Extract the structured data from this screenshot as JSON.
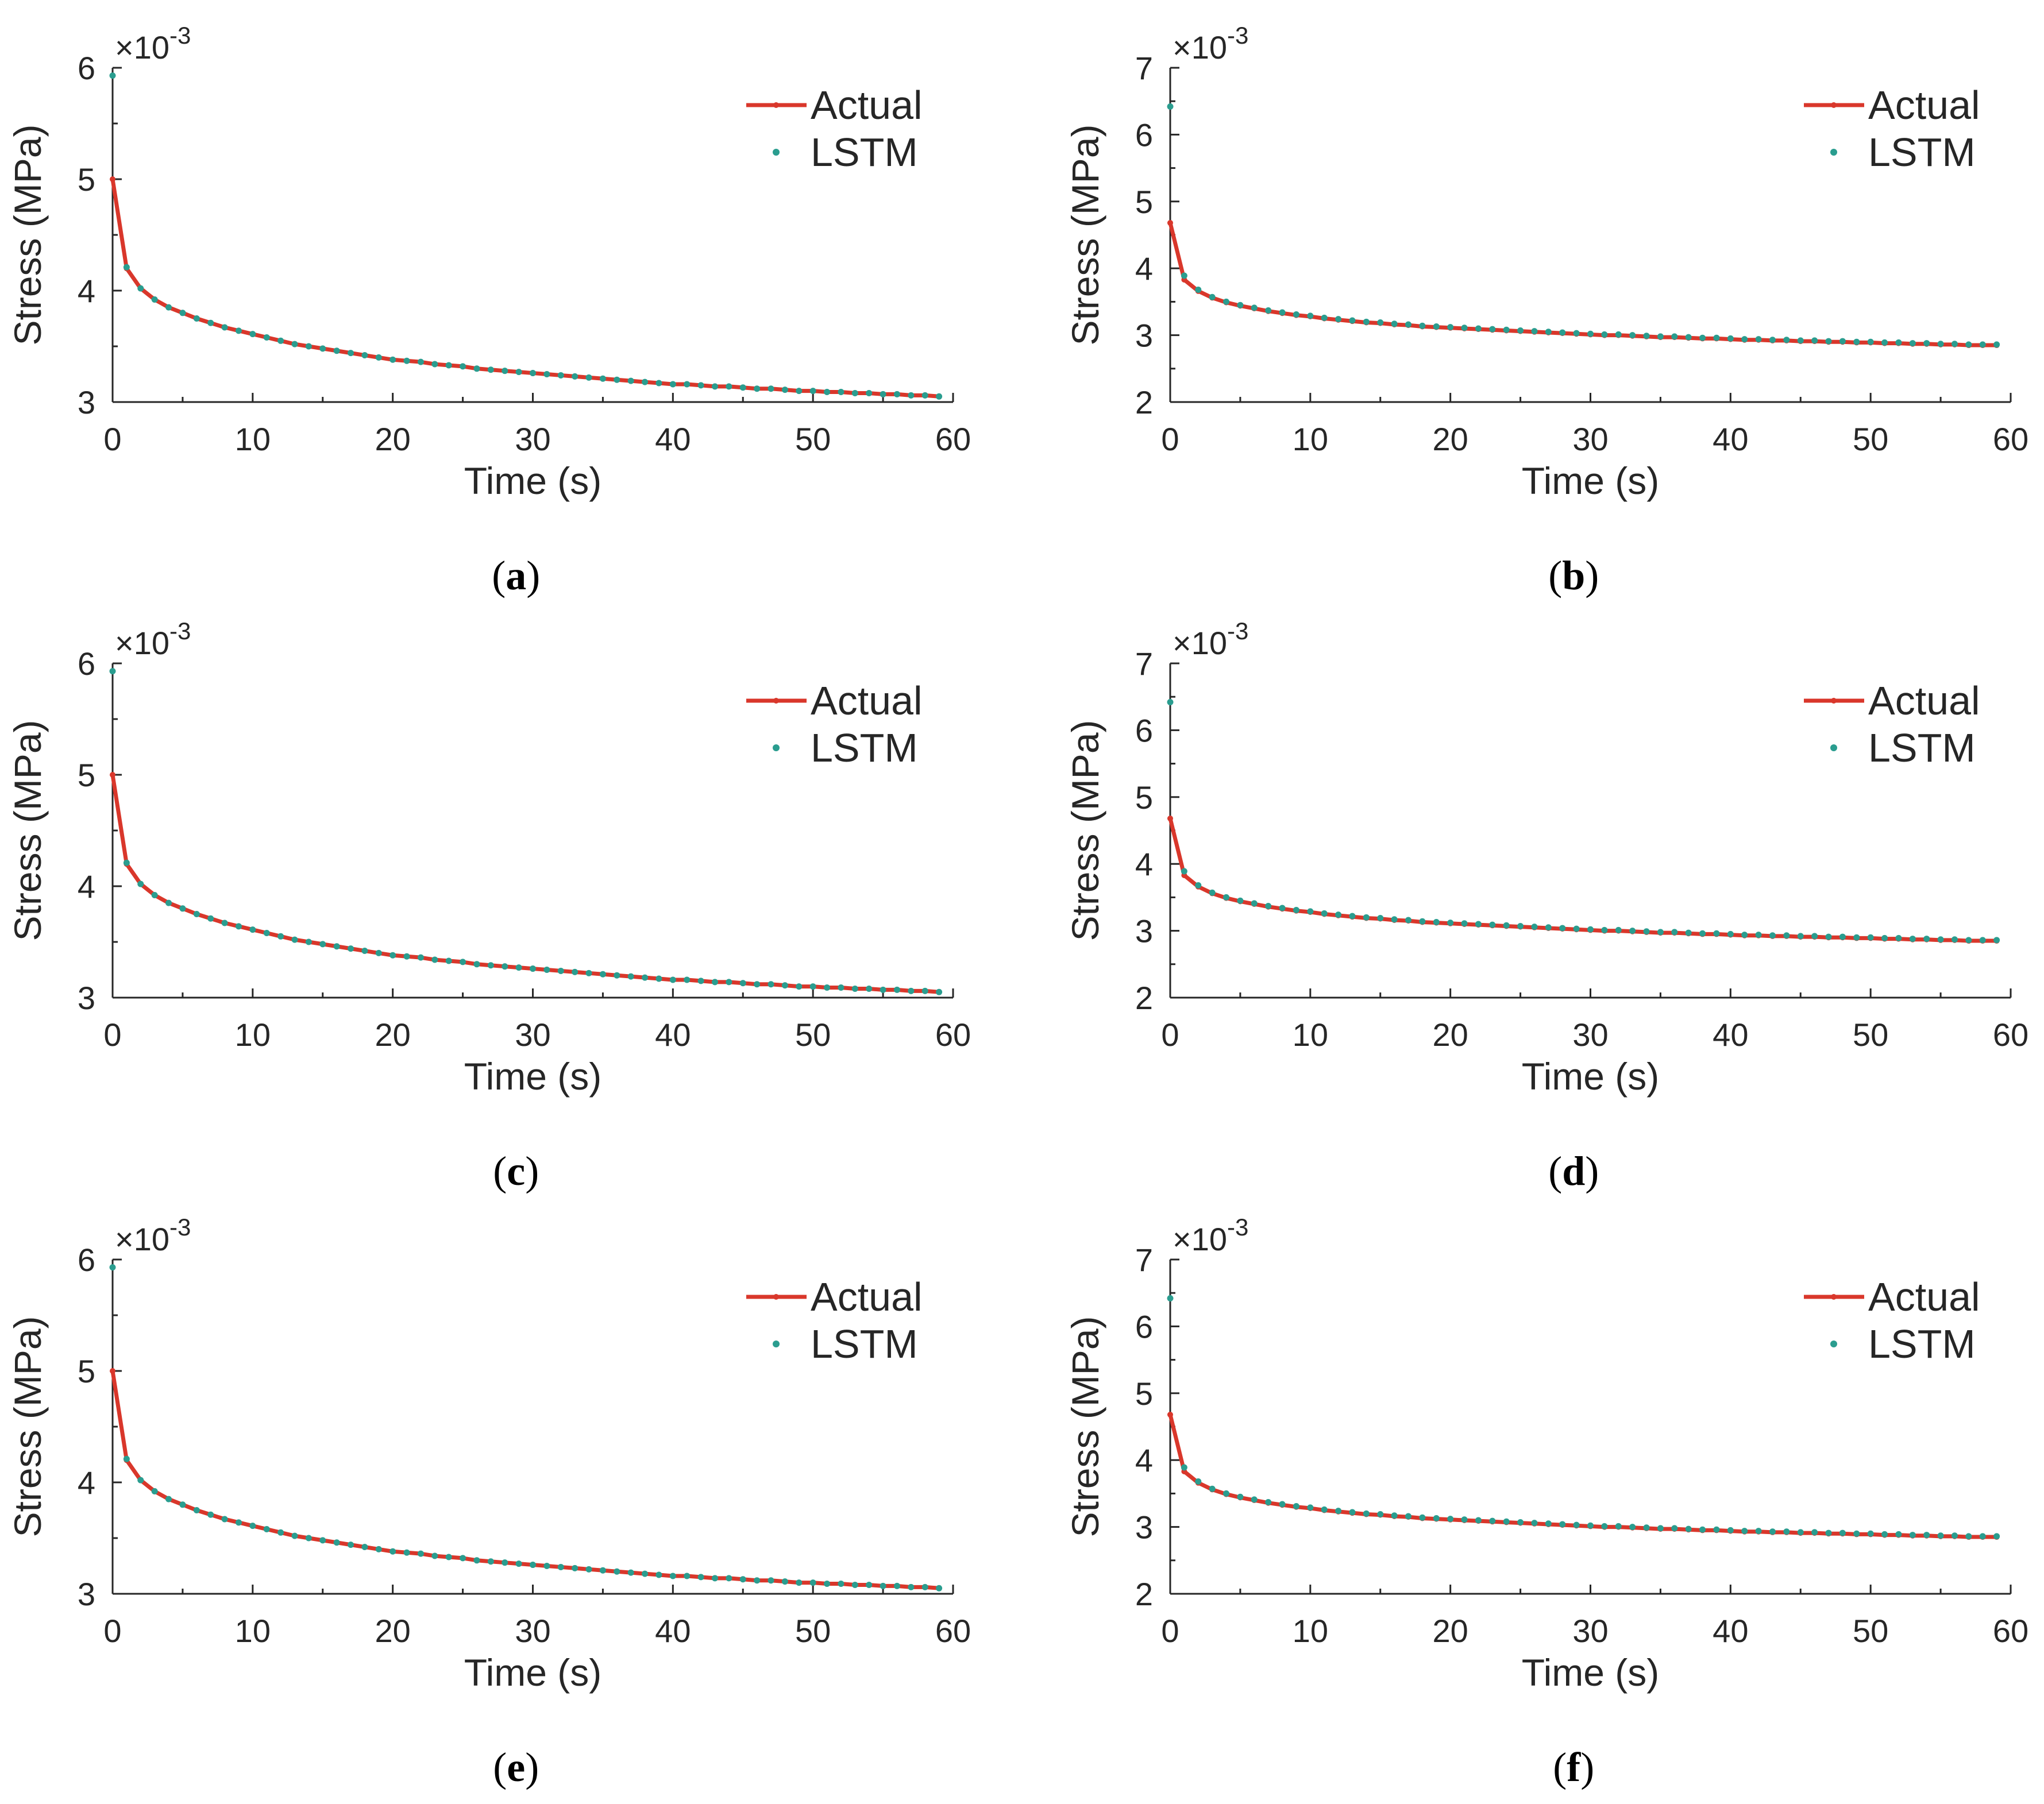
{
  "colors": {
    "actual": "#d9372b",
    "lstm": "#2a9d8f",
    "axis": "#262626"
  },
  "legend": {
    "actual_label": "Actual",
    "lstm_label": "LSTM"
  },
  "common": {
    "xlabel": "Time (s)",
    "ylabel": "Stress (MPa)",
    "exponent_base": "×10",
    "exponent_power": "-3"
  },
  "chart_data": [
    {
      "type": "line",
      "caption": "a",
      "title": "",
      "xlabel": "Time (s)",
      "ylabel": "Stress (MPa)",
      "xlim": [
        0,
        60
      ],
      "ylim": [
        3,
        6
      ],
      "y_scale": "×10^-3",
      "xticks": [
        "0",
        "10",
        "20",
        "30",
        "40",
        "50",
        "60"
      ],
      "yticks": [
        "3",
        "4",
        "5",
        "6"
      ],
      "legend": [
        "Actual",
        "LSTM"
      ],
      "legend_position": "top-right",
      "series": [
        {
          "name": "Actual",
          "style": "line-with-markers",
          "x_start": 0,
          "x_step": 1,
          "values": [
            5.0,
            4.2,
            4.02,
            3.92,
            3.85,
            3.8,
            3.75,
            3.71,
            3.67,
            3.64,
            3.61,
            3.58,
            3.55,
            3.52,
            3.5,
            3.48,
            3.46,
            3.44,
            3.42,
            3.4,
            3.38,
            3.37,
            3.36,
            3.34,
            3.33,
            3.32,
            3.3,
            3.29,
            3.28,
            3.27,
            3.26,
            3.25,
            3.24,
            3.23,
            3.22,
            3.21,
            3.2,
            3.19,
            3.18,
            3.17,
            3.16,
            3.16,
            3.15,
            3.14,
            3.14,
            3.13,
            3.12,
            3.12,
            3.11,
            3.1,
            3.1,
            3.09,
            3.09,
            3.08,
            3.08,
            3.07,
            3.07,
            3.06,
            3.06,
            3.05
          ]
        },
        {
          "name": "LSTM",
          "style": "markers",
          "x_start": 0,
          "x_step": 1,
          "values": [
            5.93,
            4.21,
            4.02,
            3.92,
            3.85,
            3.8,
            3.75,
            3.71,
            3.67,
            3.64,
            3.61,
            3.58,
            3.55,
            3.52,
            3.5,
            3.48,
            3.46,
            3.44,
            3.42,
            3.4,
            3.38,
            3.37,
            3.36,
            3.34,
            3.33,
            3.32,
            3.3,
            3.29,
            3.28,
            3.27,
            3.26,
            3.25,
            3.24,
            3.23,
            3.22,
            3.21,
            3.2,
            3.19,
            3.18,
            3.17,
            3.16,
            3.16,
            3.15,
            3.14,
            3.14,
            3.13,
            3.12,
            3.12,
            3.11,
            3.1,
            3.1,
            3.09,
            3.09,
            3.08,
            3.08,
            3.07,
            3.07,
            3.06,
            3.06,
            3.05
          ]
        }
      ]
    },
    {
      "type": "line",
      "caption": "b",
      "title": "",
      "xlabel": "Time (s)",
      "ylabel": "Stress (MPa)",
      "xlim": [
        0,
        60
      ],
      "ylim": [
        2,
        7
      ],
      "y_scale": "×10^-3",
      "xticks": [
        "0",
        "10",
        "20",
        "30",
        "40",
        "50",
        "60"
      ],
      "yticks": [
        "2",
        "3",
        "4",
        "5",
        "6",
        "7"
      ],
      "legend": [
        "Actual",
        "LSTM"
      ],
      "legend_position": "top-right",
      "series": [
        {
          "name": "Actual",
          "style": "line-with-markers",
          "x_start": 0,
          "x_step": 1,
          "values": [
            4.68,
            3.83,
            3.66,
            3.56,
            3.49,
            3.44,
            3.4,
            3.36,
            3.33,
            3.3,
            3.28,
            3.25,
            3.23,
            3.21,
            3.19,
            3.18,
            3.16,
            3.15,
            3.13,
            3.12,
            3.11,
            3.1,
            3.09,
            3.08,
            3.07,
            3.06,
            3.05,
            3.04,
            3.03,
            3.02,
            3.01,
            3.0,
            3.0,
            2.99,
            2.98,
            2.97,
            2.97,
            2.96,
            2.95,
            2.95,
            2.94,
            2.93,
            2.93,
            2.92,
            2.92,
            2.91,
            2.91,
            2.9,
            2.9,
            2.89,
            2.89,
            2.88,
            2.88,
            2.87,
            2.87,
            2.86,
            2.86,
            2.85,
            2.85,
            2.85
          ]
        },
        {
          "name": "LSTM",
          "style": "markers",
          "x_start": 0,
          "x_step": 1,
          "values": [
            6.42,
            3.89,
            3.68,
            3.57,
            3.5,
            3.45,
            3.41,
            3.37,
            3.34,
            3.31,
            3.29,
            3.26,
            3.24,
            3.22,
            3.2,
            3.19,
            3.17,
            3.16,
            3.14,
            3.13,
            3.12,
            3.11,
            3.1,
            3.09,
            3.08,
            3.07,
            3.06,
            3.05,
            3.04,
            3.03,
            3.02,
            3.01,
            3.01,
            3.0,
            2.99,
            2.98,
            2.98,
            2.97,
            2.96,
            2.96,
            2.95,
            2.94,
            2.94,
            2.93,
            2.93,
            2.92,
            2.92,
            2.91,
            2.91,
            2.9,
            2.9,
            2.89,
            2.89,
            2.88,
            2.88,
            2.87,
            2.87,
            2.86,
            2.86,
            2.86
          ]
        }
      ]
    },
    {
      "type": "line",
      "caption": "c",
      "title": "",
      "xlabel": "Time (s)",
      "ylabel": "Stress (MPa)",
      "xlim": [
        0,
        60
      ],
      "ylim": [
        3,
        6
      ],
      "y_scale": "×10^-3",
      "xticks": [
        "0",
        "10",
        "20",
        "30",
        "40",
        "50",
        "60"
      ],
      "yticks": [
        "3",
        "4",
        "5",
        "6"
      ],
      "legend": [
        "Actual",
        "LSTM"
      ],
      "legend_position": "top-right",
      "series": [
        {
          "name": "Actual",
          "style": "line-with-markers",
          "x_start": 0,
          "x_step": 1,
          "values": [
            5.0,
            4.2,
            4.02,
            3.92,
            3.85,
            3.8,
            3.75,
            3.71,
            3.67,
            3.64,
            3.61,
            3.58,
            3.55,
            3.52,
            3.5,
            3.48,
            3.46,
            3.44,
            3.42,
            3.4,
            3.38,
            3.37,
            3.36,
            3.34,
            3.33,
            3.32,
            3.3,
            3.29,
            3.28,
            3.27,
            3.26,
            3.25,
            3.24,
            3.23,
            3.22,
            3.21,
            3.2,
            3.19,
            3.18,
            3.17,
            3.16,
            3.16,
            3.15,
            3.14,
            3.14,
            3.13,
            3.12,
            3.12,
            3.11,
            3.1,
            3.1,
            3.09,
            3.09,
            3.08,
            3.08,
            3.07,
            3.07,
            3.06,
            3.06,
            3.05
          ]
        },
        {
          "name": "LSTM",
          "style": "markers",
          "x_start": 0,
          "x_step": 1,
          "values": [
            5.93,
            4.21,
            4.02,
            3.92,
            3.85,
            3.8,
            3.75,
            3.71,
            3.67,
            3.64,
            3.61,
            3.58,
            3.55,
            3.52,
            3.5,
            3.48,
            3.46,
            3.44,
            3.42,
            3.4,
            3.38,
            3.37,
            3.36,
            3.34,
            3.33,
            3.32,
            3.3,
            3.29,
            3.28,
            3.27,
            3.26,
            3.25,
            3.24,
            3.23,
            3.22,
            3.21,
            3.2,
            3.19,
            3.18,
            3.17,
            3.16,
            3.16,
            3.15,
            3.14,
            3.14,
            3.13,
            3.12,
            3.12,
            3.11,
            3.1,
            3.1,
            3.09,
            3.09,
            3.08,
            3.08,
            3.07,
            3.07,
            3.06,
            3.06,
            3.05
          ]
        }
      ]
    },
    {
      "type": "line",
      "caption": "d",
      "title": "",
      "xlabel": "Time (s)",
      "ylabel": "Stress (MPa)",
      "xlim": [
        0,
        60
      ],
      "ylim": [
        2,
        7
      ],
      "y_scale": "×10^-3",
      "xticks": [
        "0",
        "10",
        "20",
        "30",
        "40",
        "50",
        "60"
      ],
      "yticks": [
        "2",
        "3",
        "4",
        "5",
        "6",
        "7"
      ],
      "legend": [
        "Actual",
        "LSTM"
      ],
      "legend_position": "top-right",
      "series": [
        {
          "name": "Actual",
          "style": "line-with-markers",
          "x_start": 0,
          "x_step": 1,
          "values": [
            4.68,
            3.83,
            3.66,
            3.56,
            3.49,
            3.44,
            3.4,
            3.36,
            3.33,
            3.3,
            3.28,
            3.25,
            3.23,
            3.21,
            3.19,
            3.18,
            3.16,
            3.15,
            3.13,
            3.12,
            3.11,
            3.1,
            3.09,
            3.08,
            3.07,
            3.06,
            3.05,
            3.04,
            3.03,
            3.02,
            3.01,
            3.0,
            3.0,
            2.99,
            2.98,
            2.97,
            2.97,
            2.96,
            2.95,
            2.95,
            2.94,
            2.93,
            2.93,
            2.92,
            2.92,
            2.91,
            2.91,
            2.9,
            2.9,
            2.89,
            2.89,
            2.88,
            2.88,
            2.87,
            2.87,
            2.86,
            2.86,
            2.85,
            2.85,
            2.85
          ]
        },
        {
          "name": "LSTM",
          "style": "markers",
          "x_start": 0,
          "x_step": 1,
          "values": [
            6.42,
            3.89,
            3.68,
            3.57,
            3.5,
            3.45,
            3.41,
            3.37,
            3.34,
            3.31,
            3.29,
            3.26,
            3.24,
            3.22,
            3.2,
            3.19,
            3.17,
            3.16,
            3.14,
            3.13,
            3.12,
            3.11,
            3.1,
            3.09,
            3.08,
            3.07,
            3.06,
            3.05,
            3.04,
            3.03,
            3.02,
            3.01,
            3.01,
            3.0,
            2.99,
            2.98,
            2.98,
            2.97,
            2.96,
            2.96,
            2.95,
            2.94,
            2.94,
            2.93,
            2.93,
            2.92,
            2.92,
            2.91,
            2.91,
            2.9,
            2.9,
            2.89,
            2.89,
            2.88,
            2.88,
            2.87,
            2.87,
            2.86,
            2.86,
            2.86
          ]
        }
      ]
    },
    {
      "type": "line",
      "caption": "e",
      "title": "",
      "xlabel": "Time (s)",
      "ylabel": "Stress (MPa)",
      "xlim": [
        0,
        60
      ],
      "ylim": [
        3,
        6
      ],
      "y_scale": "×10^-3",
      "xticks": [
        "0",
        "10",
        "20",
        "30",
        "40",
        "50",
        "60"
      ],
      "yticks": [
        "3",
        "4",
        "5",
        "6"
      ],
      "legend": [
        "Actual",
        "LSTM"
      ],
      "legend_position": "top-right",
      "series": [
        {
          "name": "Actual",
          "style": "line-with-markers",
          "x_start": 0,
          "x_step": 1,
          "values": [
            5.0,
            4.2,
            4.02,
            3.92,
            3.85,
            3.8,
            3.75,
            3.71,
            3.67,
            3.64,
            3.61,
            3.58,
            3.55,
            3.52,
            3.5,
            3.48,
            3.46,
            3.44,
            3.42,
            3.4,
            3.38,
            3.37,
            3.36,
            3.34,
            3.33,
            3.32,
            3.3,
            3.29,
            3.28,
            3.27,
            3.26,
            3.25,
            3.24,
            3.23,
            3.22,
            3.21,
            3.2,
            3.19,
            3.18,
            3.17,
            3.16,
            3.16,
            3.15,
            3.14,
            3.14,
            3.13,
            3.12,
            3.12,
            3.11,
            3.1,
            3.1,
            3.09,
            3.09,
            3.08,
            3.08,
            3.07,
            3.07,
            3.06,
            3.06,
            3.05
          ]
        },
        {
          "name": "LSTM",
          "style": "markers",
          "x_start": 0,
          "x_step": 1,
          "values": [
            5.93,
            4.21,
            4.02,
            3.92,
            3.85,
            3.8,
            3.75,
            3.71,
            3.67,
            3.64,
            3.61,
            3.58,
            3.55,
            3.52,
            3.5,
            3.48,
            3.46,
            3.44,
            3.42,
            3.4,
            3.38,
            3.37,
            3.36,
            3.34,
            3.33,
            3.32,
            3.3,
            3.29,
            3.28,
            3.27,
            3.26,
            3.25,
            3.24,
            3.23,
            3.22,
            3.21,
            3.2,
            3.19,
            3.18,
            3.17,
            3.16,
            3.16,
            3.15,
            3.14,
            3.14,
            3.13,
            3.12,
            3.12,
            3.11,
            3.1,
            3.1,
            3.09,
            3.09,
            3.08,
            3.08,
            3.07,
            3.07,
            3.06,
            3.06,
            3.05
          ]
        }
      ]
    },
    {
      "type": "line",
      "caption": "f",
      "title": "",
      "xlabel": "Time (s)",
      "ylabel": "Stress (MPa)",
      "xlim": [
        0,
        60
      ],
      "ylim": [
        2,
        7
      ],
      "y_scale": "×10^-3",
      "xticks": [
        "0",
        "10",
        "20",
        "30",
        "40",
        "50",
        "60"
      ],
      "yticks": [
        "2",
        "3",
        "4",
        "5",
        "6",
        "7"
      ],
      "legend": [
        "Actual",
        "LSTM"
      ],
      "legend_position": "top-right",
      "series": [
        {
          "name": "Actual",
          "style": "line-with-markers",
          "x_start": 0,
          "x_step": 1,
          "values": [
            4.68,
            3.83,
            3.66,
            3.56,
            3.49,
            3.44,
            3.4,
            3.36,
            3.33,
            3.3,
            3.28,
            3.25,
            3.23,
            3.21,
            3.19,
            3.18,
            3.16,
            3.15,
            3.13,
            3.12,
            3.11,
            3.1,
            3.09,
            3.08,
            3.07,
            3.06,
            3.05,
            3.04,
            3.03,
            3.02,
            3.01,
            3.0,
            3.0,
            2.99,
            2.98,
            2.97,
            2.97,
            2.96,
            2.95,
            2.95,
            2.94,
            2.93,
            2.93,
            2.92,
            2.92,
            2.91,
            2.91,
            2.9,
            2.9,
            2.89,
            2.89,
            2.88,
            2.88,
            2.87,
            2.87,
            2.86,
            2.86,
            2.85,
            2.85,
            2.85
          ]
        },
        {
          "name": "LSTM",
          "style": "markers",
          "x_start": 0,
          "x_step": 1,
          "values": [
            6.42,
            3.89,
            3.68,
            3.57,
            3.5,
            3.45,
            3.41,
            3.37,
            3.34,
            3.31,
            3.29,
            3.26,
            3.24,
            3.22,
            3.2,
            3.19,
            3.17,
            3.16,
            3.14,
            3.13,
            3.12,
            3.11,
            3.1,
            3.09,
            3.08,
            3.07,
            3.06,
            3.05,
            3.04,
            3.03,
            3.02,
            3.01,
            3.01,
            3.0,
            2.99,
            2.98,
            2.98,
            2.97,
            2.96,
            2.96,
            2.95,
            2.94,
            2.94,
            2.93,
            2.93,
            2.92,
            2.92,
            2.91,
            2.91,
            2.9,
            2.9,
            2.89,
            2.89,
            2.88,
            2.88,
            2.87,
            2.87,
            2.86,
            2.86,
            2.86
          ]
        }
      ]
    }
  ]
}
